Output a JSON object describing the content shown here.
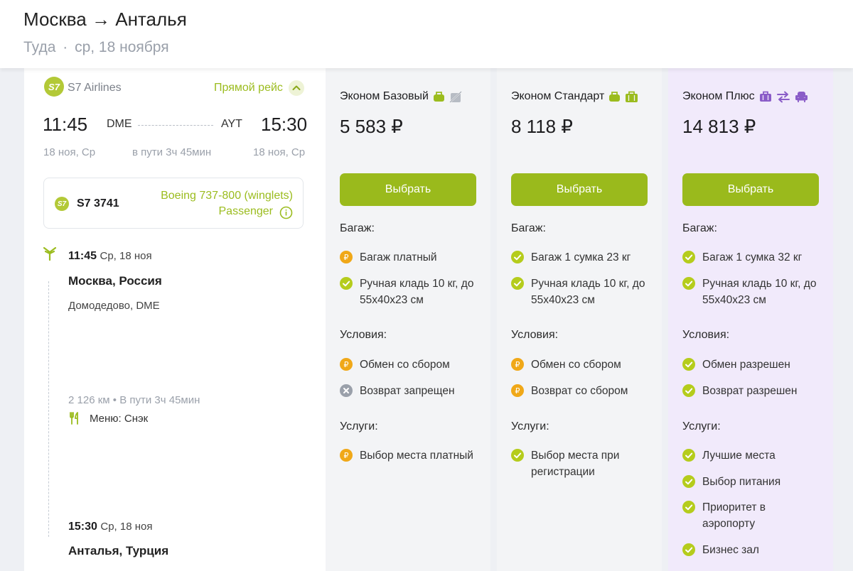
{
  "header": {
    "route_from": "Москва",
    "arrow": "→",
    "route_to": "Анталья",
    "subtitle_dir": "Туда",
    "subtitle_sep": "·",
    "subtitle_date": "ср, 18 ноября"
  },
  "flight": {
    "airline": "S7 Airlines",
    "logo_text": "S7",
    "direct_label": "Прямой рейс",
    "dep_time": "11:45",
    "dep_code": "DME",
    "arr_code": "AYT",
    "arr_time": "15:30",
    "dep_date": "18 ноя, Ср",
    "duration": "в пути 3ч 45мин",
    "arr_date": "18 ноя, Ср",
    "flight_no": "S7 3741",
    "aircraft_line1": "Boeing 737-800 (winglets)",
    "aircraft_line2": "Passenger",
    "timeline": {
      "dep_time": "11:45",
      "dep_day": "Ср, 18 ноя",
      "dep_city": "Москва, Россия",
      "dep_airport": "Домодедово, DME",
      "distance": "2 126 км",
      "bullet": "•",
      "in_flight": "В пути 3ч 45мин",
      "menu": "Меню: Снэк",
      "arr_time": "15:30",
      "arr_day": "Ср, 18 ноя",
      "arr_city": "Анталья, Турция"
    }
  },
  "tariffs": [
    {
      "name": "Эконом Базовый",
      "price": "5 583 ₽",
      "button": "Выбрать",
      "baggage_title": "Багаж:",
      "baggage": [
        "Багаж платный",
        "Ручная кладь 10 кг, до 55x40x23 см"
      ],
      "conditions_title": "Условия:",
      "conditions": [
        "Обмен со сбором",
        "Возврат запрещен"
      ],
      "services_title": "Услуги:",
      "services": [
        "Выбор места платный"
      ]
    },
    {
      "name": "Эконом Стандарт",
      "price": "8 118 ₽",
      "button": "Выбрать",
      "baggage_title": "Багаж:",
      "baggage": [
        "Багаж 1 сумка 23 кг",
        "Ручная кладь 10 кг, до 55x40x23 см"
      ],
      "conditions_title": "Условия:",
      "conditions": [
        "Обмен со сбором",
        "Возврат со сбором"
      ],
      "services_title": "Услуги:",
      "services": [
        "Выбор места при регистрации"
      ]
    },
    {
      "name": "Эконом Плюс",
      "price": "14 813 ₽",
      "button": "Выбрать",
      "baggage_title": "Багаж:",
      "baggage": [
        "Багаж 1 сумка 32 кг",
        "Ручная кладь 10 кг, до 55x40x23 см"
      ],
      "conditions_title": "Условия:",
      "conditions": [
        "Обмен разрешен",
        "Возврат разрешен"
      ],
      "services_title": "Услуги:",
      "services": [
        "Лучшие места",
        "Выбор питания",
        "Приоритет в аэропорту",
        "Бизнес зал"
      ]
    }
  ],
  "colors": {
    "accent_green": "#9aba1c",
    "check_green": "#b5cc1c",
    "fee_orange": "#f0a818",
    "forbid_gray": "#9aa0aa",
    "plus_purple": "#8a5cc8",
    "plus_bg": "#f1eafb"
  }
}
